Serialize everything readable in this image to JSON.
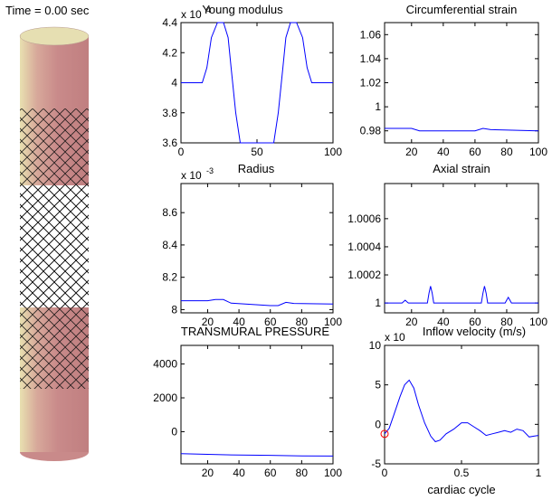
{
  "time_label": "Time = 0.00 sec",
  "colors": {
    "line": "#0000ff",
    "marker": "#ff0000",
    "vessel": "#c98a8a",
    "vessel_light": "#e8e0b0"
  },
  "chart_data": [
    {
      "type": "line",
      "title": "Young modulus",
      "exponent_label": "x 10",
      "exponent_power": "4",
      "xlim": [
        0,
        100
      ],
      "ylim": [
        3.6,
        4.4
      ],
      "xticks": [
        "0",
        "50",
        "100"
      ],
      "xtick_values": [
        0,
        50,
        100
      ],
      "yticks": [
        "3.6",
        "3.8",
        "4",
        "4.2",
        "4.4"
      ],
      "ytick_values": [
        3.6,
        3.8,
        4.0,
        4.2,
        4.4
      ],
      "series": [
        {
          "x": [
            0,
            14,
            17,
            20,
            24,
            28,
            31,
            33,
            36,
            39,
            61,
            64,
            67,
            69,
            72,
            76,
            80,
            83,
            86,
            100
          ],
          "y": [
            4.0,
            4.0,
            4.1,
            4.3,
            4.45,
            4.45,
            4.3,
            4.1,
            3.8,
            3.55,
            3.55,
            3.8,
            4.1,
            4.3,
            4.45,
            4.45,
            4.3,
            4.1,
            4.0,
            4.0
          ]
        }
      ]
    },
    {
      "type": "line",
      "title": "Circumferential strain",
      "xlim": [
        3,
        100
      ],
      "ylim": [
        0.97,
        1.07
      ],
      "xticks": [
        "20",
        "40",
        "60",
        "80",
        "100"
      ],
      "xtick_values": [
        20,
        40,
        60,
        80,
        100
      ],
      "yticks": [
        "0.98",
        "1",
        "1.02",
        "1.04",
        "1.06"
      ],
      "ytick_values": [
        0.98,
        1.0,
        1.02,
        1.04,
        1.06
      ],
      "series": [
        {
          "x": [
            3,
            20,
            25,
            30,
            60,
            65,
            70,
            100
          ],
          "y": [
            0.982,
            0.982,
            0.98,
            0.98,
            0.98,
            0.982,
            0.981,
            0.98
          ]
        }
      ]
    },
    {
      "type": "line",
      "title": "Radius",
      "exponent_label": "x 10",
      "exponent_power": "-3",
      "xlim": [
        3,
        100
      ],
      "ylim": [
        7.98,
        8.78
      ],
      "xticks": [
        "20",
        "40",
        "60",
        "80",
        "100"
      ],
      "xtick_values": [
        20,
        40,
        60,
        80,
        100
      ],
      "yticks": [
        "8",
        "8.2",
        "8.4",
        "8.6"
      ],
      "ytick_values": [
        8.0,
        8.2,
        8.4,
        8.6
      ],
      "series": [
        {
          "x": [
            3,
            20,
            25,
            30,
            35,
            60,
            65,
            70,
            75,
            100
          ],
          "y": [
            8.055,
            8.055,
            8.062,
            8.062,
            8.04,
            8.025,
            8.025,
            8.045,
            8.038,
            8.035
          ]
        }
      ]
    },
    {
      "type": "line",
      "title": "Axial strain",
      "xlim": [
        3,
        100
      ],
      "ylim": [
        0.99993,
        1.00085
      ],
      "xticks": [
        "20",
        "40",
        "60",
        "80",
        "100"
      ],
      "xtick_values": [
        20,
        40,
        60,
        80,
        100
      ],
      "yticks": [
        "1",
        "1.0002",
        "1.0004",
        "1.0006"
      ],
      "ytick_values": [
        1.0,
        1.0002,
        1.0004,
        1.0006
      ],
      "series": [
        {
          "x": [
            3,
            14,
            15,
            16,
            17,
            18,
            30,
            31,
            32,
            33,
            34,
            64,
            65,
            66,
            67,
            68,
            79,
            80,
            81,
            82,
            83,
            100
          ],
          "y": [
            1.0,
            1.0,
            1.00001,
            1.00002,
            1.00001,
            1.0,
            1.0,
            1.00007,
            1.00012,
            1.00007,
            1.0,
            1.0,
            1.00007,
            1.00012,
            1.00007,
            1.0,
            1.0,
            1.00002,
            1.00004,
            1.00002,
            1.0,
            1.0
          ]
        }
      ]
    },
    {
      "type": "line",
      "title": "TRANSMURAL PRESSURE",
      "xlim": [
        3,
        100
      ],
      "ylim": [
        -1900,
        5100
      ],
      "xticks": [
        "20",
        "40",
        "60",
        "80",
        "100"
      ],
      "xtick_values": [
        20,
        40,
        60,
        80,
        100
      ],
      "yticks": [
        "0",
        "2000",
        "4000"
      ],
      "ytick_values": [
        0,
        2000,
        4000
      ],
      "series": [
        {
          "x": [
            3,
            20,
            40,
            60,
            80,
            100
          ],
          "y": [
            -1300,
            -1340,
            -1380,
            -1400,
            -1430,
            -1440
          ]
        }
      ]
    },
    {
      "type": "line",
      "title": "Inflow velocity (m/s)",
      "exponent_label": "x 10",
      "exponent_power": "",
      "xlabel": "cardiac cycle",
      "xlim": [
        0,
        1
      ],
      "ylim": [
        -5,
        10
      ],
      "xticks": [
        "0",
        "0.5",
        "1"
      ],
      "xtick_values": [
        0,
        0.5,
        1
      ],
      "yticks": [
        "-5",
        "0",
        "5",
        "10"
      ],
      "ytick_values": [
        -5,
        0,
        5,
        10
      ],
      "series": [
        {
          "x": [
            0,
            0.03,
            0.06,
            0.1,
            0.13,
            0.16,
            0.19,
            0.22,
            0.26,
            0.3,
            0.33,
            0.36,
            0.4,
            0.45,
            0.5,
            0.54,
            0.58,
            0.62,
            0.66,
            0.7,
            0.74,
            0.78,
            0.82,
            0.86,
            0.9,
            0.94,
            0.97,
            1.0
          ],
          "y": [
            -1.2,
            -0.5,
            1.2,
            3.5,
            5.0,
            5.6,
            4.6,
            2.5,
            0.2,
            -1.5,
            -2.2,
            -2.0,
            -1.2,
            -0.6,
            0.2,
            0.2,
            -0.3,
            -0.8,
            -1.4,
            -1.2,
            -1.0,
            -0.8,
            -1.0,
            -0.6,
            -0.8,
            -1.6,
            -1.5,
            -1.4
          ]
        }
      ],
      "marker": {
        "x": 0,
        "y": -1.2
      }
    }
  ]
}
